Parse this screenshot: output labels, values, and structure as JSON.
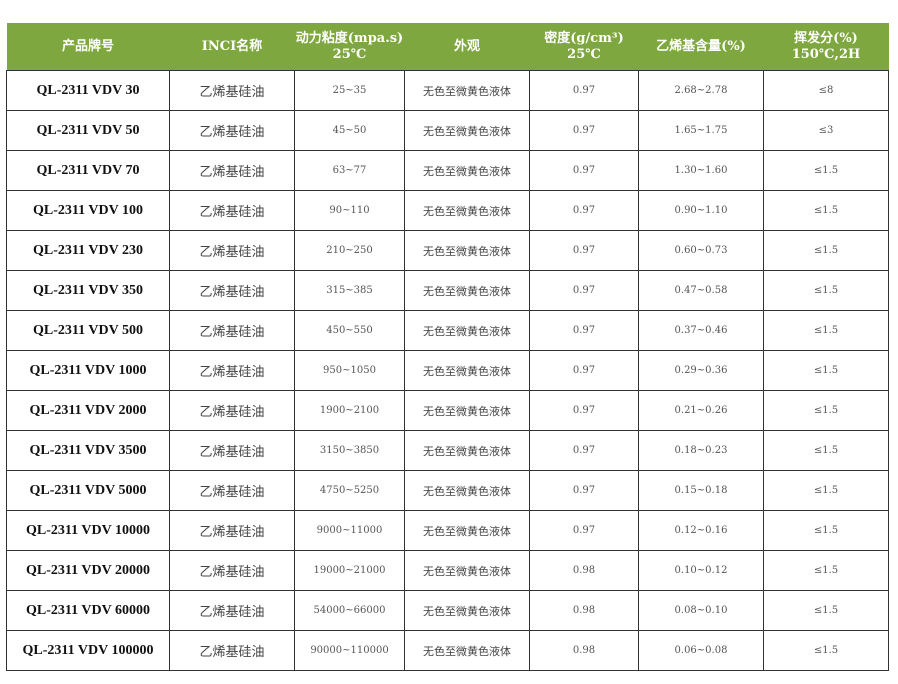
{
  "table": {
    "header_color": "#7ea83f",
    "headers": [
      [
        "产品牌号"
      ],
      [
        "INCI名称"
      ],
      [
        "动力粘度(mpa.s)",
        "25℃"
      ],
      [
        "外观"
      ],
      [
        "密度(g/cm³)",
        "25℃"
      ],
      [
        "乙烯基含量(%)"
      ],
      [
        "挥发分(%)",
        "150℃,2H"
      ]
    ],
    "rows": [
      [
        "QL-2311 VDV 30",
        "乙烯基硅油",
        "25~35",
        "无色至微黄色液体",
        "0.97",
        "2.68~2.78",
        "≤8"
      ],
      [
        "QL-2311 VDV 50",
        "乙烯基硅油",
        "45~50",
        "无色至微黄色液体",
        "0.97",
        "1.65~1.75",
        "≤3"
      ],
      [
        "QL-2311 VDV 70",
        "乙烯基硅油",
        "63~77",
        "无色至微黄色液体",
        "0.97",
        "1.30~1.60",
        "≤1.5"
      ],
      [
        "QL-2311 VDV 100",
        "乙烯基硅油",
        "90~110",
        "无色至微黄色液体",
        "0.97",
        "0.90~1.10",
        "≤1.5"
      ],
      [
        "QL-2311 VDV 230",
        "乙烯基硅油",
        "210~250",
        "无色至微黄色液体",
        "0.97",
        "0.60~0.73",
        "≤1.5"
      ],
      [
        "QL-2311 VDV 350",
        "乙烯基硅油",
        "315~385",
        "无色至微黄色液体",
        "0.97",
        "0.47~0.58",
        "≤1.5"
      ],
      [
        "QL-2311 VDV 500",
        "乙烯基硅油",
        "450~550",
        "无色至微黄色液体",
        "0.97",
        "0.37~0.46",
        "≤1.5"
      ],
      [
        "QL-2311 VDV 1000",
        "乙烯基硅油",
        "950~1050",
        "无色至微黄色液体",
        "0.97",
        "0.29~0.36",
        "≤1.5"
      ],
      [
        "QL-2311 VDV 2000",
        "乙烯基硅油",
        "1900~2100",
        "无色至微黄色液体",
        "0.97",
        "0.21~0.26",
        "≤1.5"
      ],
      [
        "QL-2311 VDV 3500",
        "乙烯基硅油",
        "3150~3850",
        "无色至微黄色液体",
        "0.97",
        "0.18~0.23",
        "≤1.5"
      ],
      [
        "QL-2311 VDV 5000",
        "乙烯基硅油",
        "4750~5250",
        "无色至微黄色液体",
        "0.97",
        "0.15~0.18",
        "≤1.5"
      ],
      [
        "QL-2311 VDV 10000",
        "乙烯基硅油",
        "9000~11000",
        "无色至微黄色液体",
        "0.97",
        "0.12~0.16",
        "≤1.5"
      ],
      [
        "QL-2311 VDV 20000",
        "乙烯基硅油",
        "19000~21000",
        "无色至微黄色液体",
        "0.98",
        "0.10~0.12",
        "≤1.5"
      ],
      [
        "QL-2311 VDV 60000",
        "乙烯基硅油",
        "54000~66000",
        "无色至微黄色液体",
        "0.98",
        "0.08~0.10",
        "≤1.5"
      ],
      [
        "QL-2311 VDV 100000",
        "乙烯基硅油",
        "90000~110000",
        "无色至微黄色液体",
        "0.98",
        "0.06~0.08",
        "≤1.5"
      ]
    ]
  }
}
